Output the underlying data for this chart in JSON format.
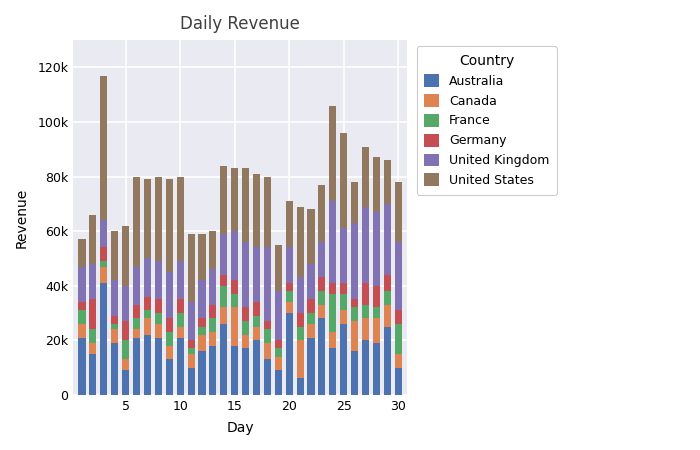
{
  "title": "Daily Revenue",
  "xlabel": "Day",
  "ylabel": "Revenue",
  "countries": [
    "Australia",
    "Canada",
    "France",
    "Germany",
    "United Kingdom",
    "United States"
  ],
  "colors": [
    "#4c72b0",
    "#dd8452",
    "#55a868",
    "#c44e52",
    "#8172b3",
    "#937860"
  ],
  "days": [
    1,
    2,
    3,
    4,
    5,
    6,
    7,
    8,
    9,
    10,
    11,
    12,
    13,
    14,
    15,
    16,
    17,
    18,
    19,
    20,
    21,
    22,
    23,
    24,
    25,
    26,
    27,
    28,
    29,
    30
  ],
  "data": {
    "Australia": [
      21000,
      15000,
      41000,
      19000,
      9000,
      21000,
      22000,
      21000,
      13000,
      21000,
      10000,
      16000,
      18000,
      26000,
      18000,
      17000,
      20000,
      13000,
      9000,
      30000,
      6000,
      21000,
      28000,
      17000,
      26000,
      16000,
      20000,
      19000,
      25000,
      10000
    ],
    "Canada": [
      5000,
      4000,
      6000,
      5000,
      4000,
      3000,
      6000,
      5000,
      5000,
      4000,
      5000,
      6000,
      5000,
      6000,
      14000,
      5000,
      5000,
      6000,
      5000,
      4000,
      14000,
      5000,
      5000,
      6000,
      5000,
      11000,
      8000,
      9000,
      8000,
      5000
    ],
    "France": [
      5000,
      5000,
      2000,
      2000,
      7000,
      4000,
      3000,
      4000,
      5000,
      5000,
      2000,
      3000,
      5000,
      8000,
      5000,
      5000,
      4000,
      5000,
      3000,
      4000,
      5000,
      4000,
      5000,
      14000,
      6000,
      5000,
      5000,
      4000,
      5000,
      11000
    ],
    "Germany": [
      3000,
      11000,
      5000,
      3000,
      7000,
      5000,
      5000,
      5000,
      5000,
      5000,
      3000,
      3000,
      5000,
      4000,
      5000,
      5000,
      5000,
      3000,
      3000,
      3000,
      5000,
      5000,
      5000,
      4000,
      4000,
      3000,
      8000,
      8000,
      6000,
      5000
    ],
    "United Kingdom": [
      13000,
      13000,
      10000,
      13000,
      13000,
      14000,
      14000,
      14000,
      17000,
      14000,
      14000,
      14000,
      13000,
      15000,
      18000,
      24000,
      20000,
      27000,
      18000,
      13000,
      13000,
      13000,
      13000,
      30000,
      20000,
      28000,
      28000,
      27000,
      26000,
      25000
    ],
    "United States": [
      10000,
      18000,
      53000,
      18000,
      22000,
      33000,
      29000,
      31000,
      34000,
      31000,
      25000,
      17000,
      14000,
      25000,
      23000,
      27000,
      27000,
      26000,
      17000,
      17000,
      26000,
      20000,
      21000,
      35000,
      35000,
      15000,
      22000,
      20000,
      16000,
      22000
    ]
  },
  "ylim": [
    0,
    130000
  ],
  "yticks": [
    0,
    20000,
    40000,
    60000,
    80000,
    100000,
    120000
  ],
  "ytick_labels": [
    "0",
    "20k",
    "40k",
    "60k",
    "80k",
    "100k",
    "120k"
  ],
  "bg_color": "#eaeaf2",
  "grid_color": "white",
  "title_fontsize": 12,
  "label_fontsize": 10,
  "tick_fontsize": 9,
  "fig_width": 7.0,
  "fig_height": 4.5,
  "dpi": 100
}
